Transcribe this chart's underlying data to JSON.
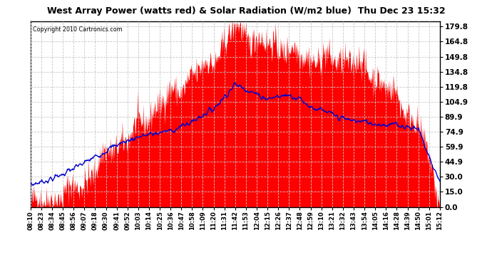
{
  "title": "West Array Power (watts red) & Solar Radiation (W/m2 blue)  Thu Dec 23 15:32",
  "copyright": "Copyright 2010 Cartronics.com",
  "yticks": [
    0.0,
    15.0,
    30.0,
    44.9,
    59.9,
    74.9,
    89.9,
    104.9,
    119.8,
    134.8,
    149.8,
    164.8,
    179.8
  ],
  "ymax": 185,
  "ymin": 0,
  "background_color": "#ffffff",
  "plot_bg_color": "#ffffff",
  "red_fill_color": "#ff0000",
  "blue_line_color": "#0000cc",
  "grid_color": "#c8c8c8",
  "xtick_labels": [
    "08:10",
    "08:23",
    "08:34",
    "08:45",
    "08:56",
    "09:07",
    "09:18",
    "09:30",
    "09:41",
    "09:52",
    "10:03",
    "10:14",
    "10:25",
    "10:36",
    "10:47",
    "10:58",
    "11:09",
    "11:20",
    "11:31",
    "11:42",
    "11:53",
    "12:04",
    "12:15",
    "12:26",
    "12:37",
    "12:48",
    "12:59",
    "13:10",
    "13:21",
    "13:32",
    "13:43",
    "13:54",
    "14:05",
    "14:16",
    "14:28",
    "14:39",
    "14:50",
    "15:01",
    "15:12"
  ],
  "red_keypoints_x": [
    0,
    1,
    2,
    3,
    4,
    5,
    6,
    7,
    8,
    9,
    10,
    11,
    12,
    13,
    14,
    15,
    16,
    17,
    18,
    19,
    20,
    21,
    22,
    23,
    24,
    25,
    26,
    27,
    28,
    29,
    30,
    31,
    32,
    33,
    34,
    35,
    36,
    37,
    38
  ],
  "red_keypoints_y": [
    3,
    5,
    8,
    12,
    18,
    25,
    38,
    52,
    62,
    68,
    80,
    92,
    102,
    112,
    120,
    130,
    138,
    148,
    160,
    182,
    172,
    165,
    162,
    162,
    155,
    152,
    148,
    148,
    145,
    148,
    145,
    138,
    130,
    120,
    108,
    95,
    80,
    45,
    5
  ],
  "blue_keypoints_x": [
    0,
    1,
    2,
    3,
    4,
    5,
    6,
    7,
    8,
    9,
    10,
    11,
    12,
    13,
    14,
    15,
    16,
    17,
    18,
    19,
    20,
    21,
    22,
    23,
    24,
    25,
    26,
    27,
    28,
    29,
    30,
    31,
    32,
    33,
    34,
    35,
    36,
    37,
    38
  ],
  "blue_keypoints_y": [
    22,
    25,
    28,
    33,
    38,
    44,
    50,
    56,
    62,
    66,
    70,
    72,
    74,
    76,
    80,
    85,
    92,
    98,
    110,
    122,
    118,
    112,
    108,
    110,
    112,
    108,
    100,
    96,
    92,
    88,
    86,
    85,
    83,
    82,
    82,
    80,
    78,
    50,
    25
  ],
  "red_noise_seed": 42,
  "red_noise_scale": 8,
  "blue_noise_seed": 7,
  "blue_noise_scale": 3
}
